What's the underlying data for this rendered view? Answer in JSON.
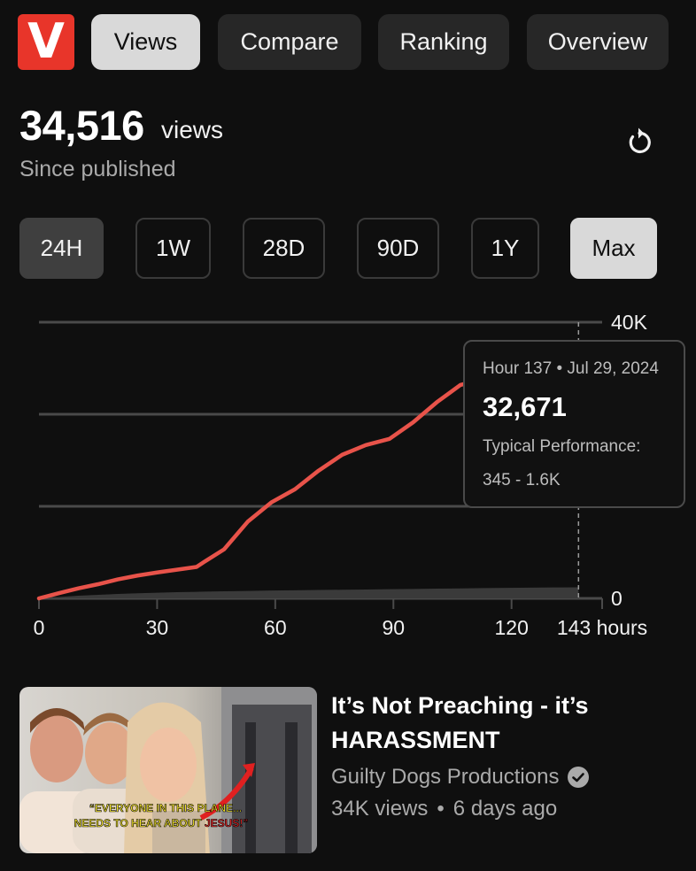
{
  "logo": {
    "letter": "V",
    "color": "#e8352a"
  },
  "nav_tabs": [
    {
      "label": "Views",
      "active": true
    },
    {
      "label": "Compare",
      "active": false
    },
    {
      "label": "Ranking",
      "active": false
    },
    {
      "label": "Overview",
      "active": false
    }
  ],
  "summary": {
    "count": "34,516",
    "unit": "views",
    "since": "Since published",
    "refresh_icon": "refresh-icon"
  },
  "ranges": [
    "24H",
    "1W",
    "28D",
    "90D",
    "1Y",
    "Max"
  ],
  "chart_data": {
    "type": "line",
    "x": [
      0,
      5,
      10,
      15,
      20,
      25,
      30,
      35,
      40,
      42,
      47,
      53,
      59,
      65,
      71,
      77,
      83,
      89,
      95,
      101,
      107,
      113,
      119,
      125,
      131,
      137
    ],
    "series": [
      {
        "values": [
          0,
          750,
          1450,
          2050,
          2750,
          3300,
          3750,
          4150,
          4550,
          5300,
          7100,
          11100,
          13900,
          15800,
          18500,
          20800,
          22200,
          23100,
          25500,
          28400,
          30900,
          31800,
          32100,
          32400,
          32550,
          32671
        ]
      },
      {
        "values": [
          0,
          200,
          380,
          520,
          640,
          740,
          820,
          890,
          950,
          980,
          1030,
          1080,
          1130,
          1170,
          1210,
          1250,
          1290,
          1330,
          1370,
          1410,
          1450,
          1490,
          1520,
          1550,
          1580,
          1600
        ]
      }
    ],
    "xlim": [
      0,
      143
    ],
    "ylim": [
      0,
      40000
    ],
    "x_ticks": [
      "0",
      "30",
      "60",
      "90",
      "120",
      "143 hours"
    ],
    "x_tick_values": [
      0,
      30,
      60,
      90,
      120,
      143
    ],
    "y_ticks": [
      "0",
      "",
      "",
      "40K"
    ],
    "y_tick_values": [
      0,
      13333,
      26667,
      40000
    ],
    "colors": {
      "line": "#e8534a",
      "band": "#3a3a3a",
      "grid": "#4a4a4a"
    },
    "tooltip": {
      "header": "Hour 137 • Jul 29, 2024",
      "value": "32,671",
      "label": "Typical Performance:",
      "range": "345 - 1.6K"
    }
  },
  "video": {
    "title": "It’s Not Preaching - it’s HARASSMENT",
    "channel": "Guilty Dogs Productions",
    "views": "34K views",
    "age": "6 days ago",
    "verified_icon": "verified-check-icon",
    "thumbnail_caption": {
      "line1": "“EVERYONE IN THIS PLANE...",
      "line2a": "NEEDS TO HEAR ABOUT ",
      "line2b": "JESUS!”"
    }
  }
}
